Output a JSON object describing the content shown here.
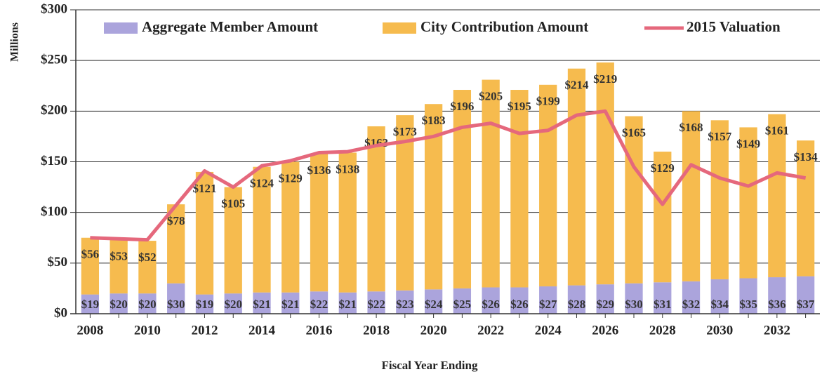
{
  "chart_data": {
    "type": "bar",
    "stacked": true,
    "y_label": "Millions",
    "x_label": "Fiscal Year Ending",
    "categories": [
      "2008",
      null,
      "2010",
      null,
      "2012",
      null,
      "2014",
      null,
      "2016",
      null,
      "2018",
      null,
      "2020",
      null,
      "2022",
      null,
      "2024",
      null,
      "2026",
      null,
      "2028",
      null,
      "2030",
      null,
      "2032",
      null
    ],
    "series": [
      {
        "name": "Aggregate Member Amount",
        "color": "#aba4dc",
        "type": "bar",
        "values": [
          19,
          20,
          20,
          30,
          19,
          20,
          21,
          21,
          22,
          21,
          22,
          23,
          24,
          25,
          26,
          26,
          27,
          28,
          29,
          30,
          31,
          32,
          34,
          35,
          36,
          37
        ],
        "value_labels": [
          "$19",
          "$20",
          "$20",
          "$30",
          "$19",
          "$20",
          "$21",
          "$21",
          "$22",
          "$21",
          "$22",
          "$23",
          "$24",
          "$25",
          "$26",
          "$26",
          "$27",
          "$28",
          "$29",
          "$30",
          "$31",
          "$32",
          "$34",
          "$35",
          "$36",
          "$37"
        ]
      },
      {
        "name": "City Contribution Amount",
        "color": "#f6bb4e",
        "type": "bar",
        "values": [
          56,
          53,
          52,
          78,
          121,
          105,
          124,
          129,
          136,
          138,
          163,
          173,
          183,
          196,
          205,
          195,
          199,
          214,
          219,
          165,
          129,
          168,
          157,
          149,
          161,
          134
        ],
        "value_labels": [
          "$56",
          "$53",
          "$52",
          "$78",
          "$121",
          "$105",
          "$124",
          "$129",
          "$136",
          "$138",
          "$163",
          "$173",
          "$183",
          "$196",
          "$205",
          "$195",
          "$199",
          "$214",
          "$219",
          "$165",
          "$129",
          "$168",
          "$157",
          "$149",
          "$161",
          "$134"
        ]
      },
      {
        "name": "2015 Valuation",
        "color": "#e5687c",
        "type": "line",
        "values": [
          75,
          74,
          73,
          107,
          141,
          125,
          146,
          151,
          159,
          160,
          166,
          170,
          175,
          184,
          188,
          178,
          181,
          196,
          200,
          145,
          108,
          147,
          134,
          126,
          139,
          134
        ]
      }
    ],
    "ylim": [
      0,
      300
    ],
    "yticks": [
      {
        "value": 0,
        "label": "$0"
      },
      {
        "value": 50,
        "label": "$50"
      },
      {
        "value": 100,
        "label": "$100"
      },
      {
        "value": 150,
        "label": "$150"
      },
      {
        "value": 200,
        "label": "$200"
      },
      {
        "value": 250,
        "label": "$250"
      },
      {
        "value": 300,
        "label": "$300"
      }
    ],
    "grid": true,
    "legend": "top"
  }
}
